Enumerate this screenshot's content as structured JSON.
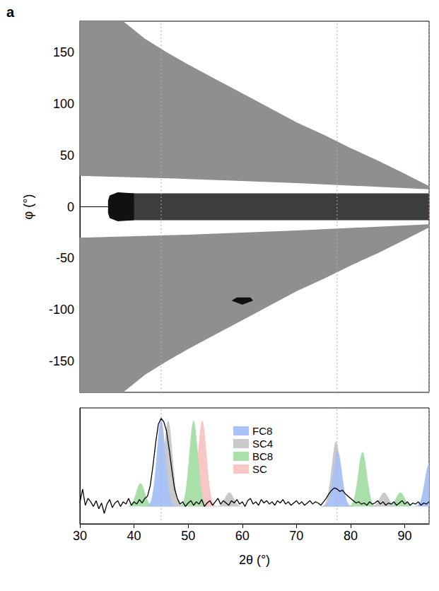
{
  "chart_data": [
    {
      "type": "image",
      "panel_label": "a",
      "y_label": "φ (°)",
      "xlim": [
        30,
        94.5
      ],
      "ylim": [
        -180,
        180
      ],
      "yticks": [
        -150,
        -100,
        -50,
        0,
        50,
        100,
        150
      ],
      "tick_labels": "y",
      "reference_lines": [
        45,
        77.5,
        94.5
      ],
      "regions": [
        {
          "color": "#8f8f8f",
          "points": [
            [
              30,
              30
            ],
            [
              30,
              180
            ],
            [
              38,
              180
            ],
            [
              42,
              163
            ],
            [
              46,
              150
            ],
            [
              50,
              138
            ],
            [
              55,
              124
            ],
            [
              60,
              110
            ],
            [
              65,
              96
            ],
            [
              70,
              82
            ],
            [
              75,
              70
            ],
            [
              80,
              57
            ],
            [
              85,
              45
            ],
            [
              90,
              32
            ],
            [
              94.5,
              20
            ],
            [
              94.5,
              17
            ],
            [
              70,
              23
            ],
            [
              50,
              27
            ]
          ]
        },
        {
          "color": "#8f8f8f",
          "points": [
            [
              30,
              -30
            ],
            [
              30,
              -180
            ],
            [
              38,
              -180
            ],
            [
              42,
              -163
            ],
            [
              46,
              -150
            ],
            [
              50,
              -138
            ],
            [
              55,
              -124
            ],
            [
              60,
              -110
            ],
            [
              65,
              -96
            ],
            [
              70,
              -82
            ],
            [
              75,
              -70
            ],
            [
              80,
              -57
            ],
            [
              85,
              -45
            ],
            [
              90,
              -32
            ],
            [
              94.5,
              -20
            ],
            [
              94.5,
              -17
            ],
            [
              70,
              -23
            ],
            [
              50,
              -27
            ]
          ]
        },
        {
          "color": "#3d3d3d",
          "points": [
            [
              36.5,
              -13
            ],
            [
              36.5,
              13
            ],
            [
              94.5,
              13
            ],
            [
              94.5,
              -13
            ]
          ]
        },
        {
          "color": "#111111",
          "points": [
            [
              35.2,
              -6
            ],
            [
              35.5,
              -11
            ],
            [
              37,
              -14
            ],
            [
              40,
              -13
            ],
            [
              40,
              13
            ],
            [
              37,
              14
            ],
            [
              35.5,
              11
            ],
            [
              35.2,
              6
            ]
          ]
        },
        {
          "color": "#111111",
          "points": [
            [
              58,
              -91
            ],
            [
              59,
              -88
            ],
            [
              61.5,
              -88
            ],
            [
              62,
              -91
            ],
            [
              60,
              -95
            ]
          ]
        }
      ]
    },
    {
      "type": "line",
      "x_label": "2θ (°)",
      "xlim": [
        30,
        94.5
      ],
      "ylim": [
        0,
        1
      ],
      "xticks": [
        30,
        40,
        50,
        60,
        70,
        80,
        90
      ],
      "tick_labels": "x",
      "legend": "top",
      "reference_lines": [
        45,
        77.5,
        94.5
      ],
      "baseline": 0.15,
      "reference_peaks": [
        {
          "name": "FC8",
          "color": "#a9c3f6",
          "width": 0.8,
          "peaks": [
            {
              "position": 45.0,
              "top": 0.9
            },
            {
              "position": 77.6,
              "top": 0.63
            },
            {
              "position": 94.5,
              "top": 0.52
            }
          ]
        },
        {
          "name": "SC4",
          "color": "#c9c9c9",
          "width": 0.8,
          "peaks": [
            {
              "position": 46.3,
              "top": 0.89
            },
            {
              "position": 57.6,
              "top": 0.27
            },
            {
              "position": 77.3,
              "top": 0.71
            },
            {
              "position": 86.2,
              "top": 0.27
            }
          ]
        },
        {
          "name": "BC8",
          "color": "#a9dfa9",
          "width": 0.8,
          "peaks": [
            {
              "position": 41.2,
              "top": 0.35
            },
            {
              "position": 51.0,
              "top": 0.89
            },
            {
              "position": 82.2,
              "top": 0.62
            },
            {
              "position": 89.2,
              "top": 0.27
            }
          ]
        },
        {
          "name": "SC",
          "color": "#f9c6c6",
          "width": 0.8,
          "peaks": [
            {
              "position": 52.6,
              "top": 0.89
            },
            {
              "position": 77.5,
              "top": 0.54
            }
          ]
        }
      ],
      "series": [
        {
          "color": "#000000",
          "x": [
            30,
            30.5,
            31,
            31.5,
            32,
            32.5,
            33,
            33.5,
            34,
            34.5,
            35,
            35.5,
            36,
            36.5,
            37,
            37.5,
            38,
            38.5,
            39,
            39.5,
            40,
            40.5,
            41,
            41.5,
            42,
            42.5,
            43,
            43.5,
            44,
            44.5,
            45,
            45.5,
            46,
            46.5,
            47,
            47.5,
            48,
            48.5,
            49,
            49.5,
            50,
            50.5,
            51,
            51.5,
            52,
            52.5,
            53,
            53.5,
            54,
            54.5,
            55,
            55.5,
            56,
            56.5,
            57,
            57.5,
            58,
            58.5,
            59,
            59.5,
            60,
            60.5,
            61,
            61.5,
            62,
            62.5,
            63,
            63.5,
            64,
            64.5,
            65,
            65.5,
            66,
            66.5,
            67,
            67.5,
            68,
            68.5,
            69,
            69.5,
            70,
            70.5,
            71,
            71.5,
            72,
            72.5,
            73,
            73.5,
            74,
            74.5,
            75,
            75.5,
            76,
            76.5,
            77,
            77.5,
            78,
            78.5,
            79,
            79.5,
            80,
            80.5,
            81,
            81.5,
            82,
            82.5,
            83,
            83.5,
            84,
            84.5,
            85,
            85.5,
            86,
            86.5,
            87,
            87.5,
            88,
            88.5,
            89,
            89.5,
            90,
            90.5,
            91,
            91.5,
            92,
            92.5,
            93,
            93.5,
            94,
            94.5
          ],
          "values": [
            0.18,
            0.3,
            0.16,
            0.22,
            0.19,
            0.15,
            0.2,
            0.13,
            0.18,
            0.09,
            0.17,
            0.21,
            0.14,
            0.18,
            0.2,
            0.15,
            0.19,
            0.17,
            0.22,
            0.16,
            0.19,
            0.17,
            0.21,
            0.18,
            0.22,
            0.24,
            0.33,
            0.5,
            0.7,
            0.86,
            0.91,
            0.88,
            0.8,
            0.64,
            0.46,
            0.3,
            0.22,
            0.17,
            0.19,
            0.15,
            0.18,
            0.2,
            0.16,
            0.19,
            0.17,
            0.21,
            0.15,
            0.18,
            0.2,
            0.16,
            0.19,
            0.22,
            0.17,
            0.2,
            0.18,
            0.16,
            0.2,
            0.18,
            0.21,
            0.17,
            0.19,
            0.15,
            0.2,
            0.22,
            0.17,
            0.19,
            0.16,
            0.21,
            0.18,
            0.2,
            0.17,
            0.19,
            0.16,
            0.2,
            0.18,
            0.21,
            0.17,
            0.19,
            0.16,
            0.18,
            0.2,
            0.17,
            0.19,
            0.16,
            0.18,
            0.2,
            0.17,
            0.19,
            0.18,
            0.16,
            0.19,
            0.22,
            0.26,
            0.29,
            0.31,
            0.3,
            0.28,
            0.29,
            0.26,
            0.24,
            0.22,
            0.2,
            0.18,
            0.19,
            0.17,
            0.18,
            0.16,
            0.19,
            0.17,
            0.18,
            0.2,
            0.17,
            0.19,
            0.16,
            0.18,
            0.17,
            0.19,
            0.16,
            0.18,
            0.2,
            0.17,
            0.19,
            0.16,
            0.18,
            0.17,
            0.19,
            0.16,
            0.18,
            0.17,
            0.19
          ]
        }
      ]
    }
  ]
}
